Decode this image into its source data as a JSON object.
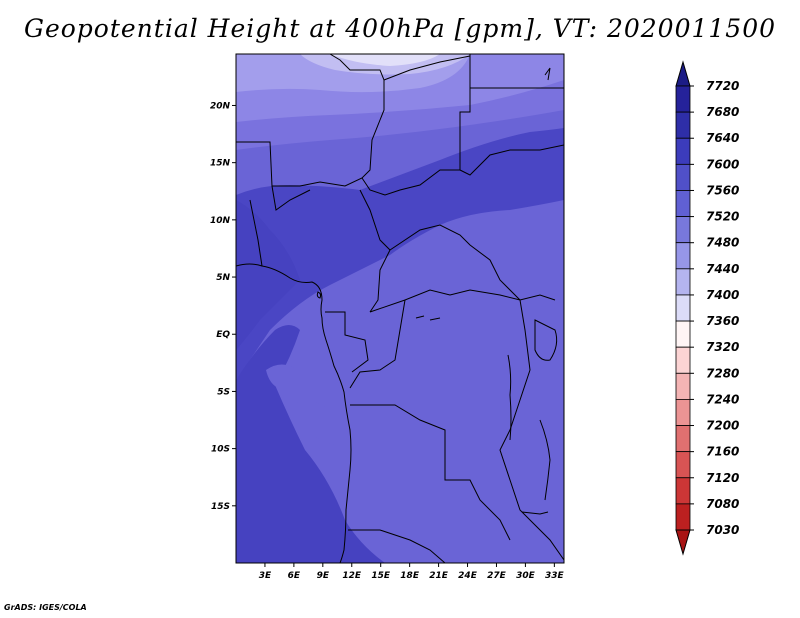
{
  "title": "Geopotential Height at 400hPa [gpm], VT: 2020011500",
  "credit": "GrADS: IGES/COLA",
  "map": {
    "lat_labels": [
      "20N",
      "15N",
      "10N",
      "5N",
      "EQ",
      "5S",
      "10S",
      "15S"
    ],
    "lat_values": [
      20,
      15,
      10,
      5,
      0,
      -5,
      -10,
      -15
    ],
    "lon_labels": [
      "3E",
      "6E",
      "9E",
      "12E",
      "15E",
      "18E",
      "21E",
      "24E",
      "27E",
      "30E",
      "33E"
    ],
    "lon_values": [
      3,
      6,
      9,
      12,
      15,
      18,
      21,
      24,
      27,
      30,
      33
    ],
    "lat_range": [
      -20,
      24.5
    ],
    "lon_range": [
      0,
      34
    ]
  },
  "colorbar": {
    "labels": [
      "7720",
      "7680",
      "7640",
      "7600",
      "7560",
      "7520",
      "7480",
      "7440",
      "7400",
      "7360",
      "7320",
      "7280",
      "7240",
      "7200",
      "7160",
      "7120",
      "7080",
      "7030"
    ],
    "colors": [
      "#1c1c86",
      "#25229a",
      "#2e2ea8",
      "#3c3cbc",
      "#5050c8",
      "#6060d4",
      "#7878dc",
      "#9696e8",
      "#b4b4ef",
      "#dcdcf8",
      "#fff5f5",
      "#fcd4d4",
      "#f4b4b4",
      "#ec9494",
      "#e07070",
      "#d85454",
      "#cc3636",
      "#bc2020",
      "#a81414"
    ]
  }
}
